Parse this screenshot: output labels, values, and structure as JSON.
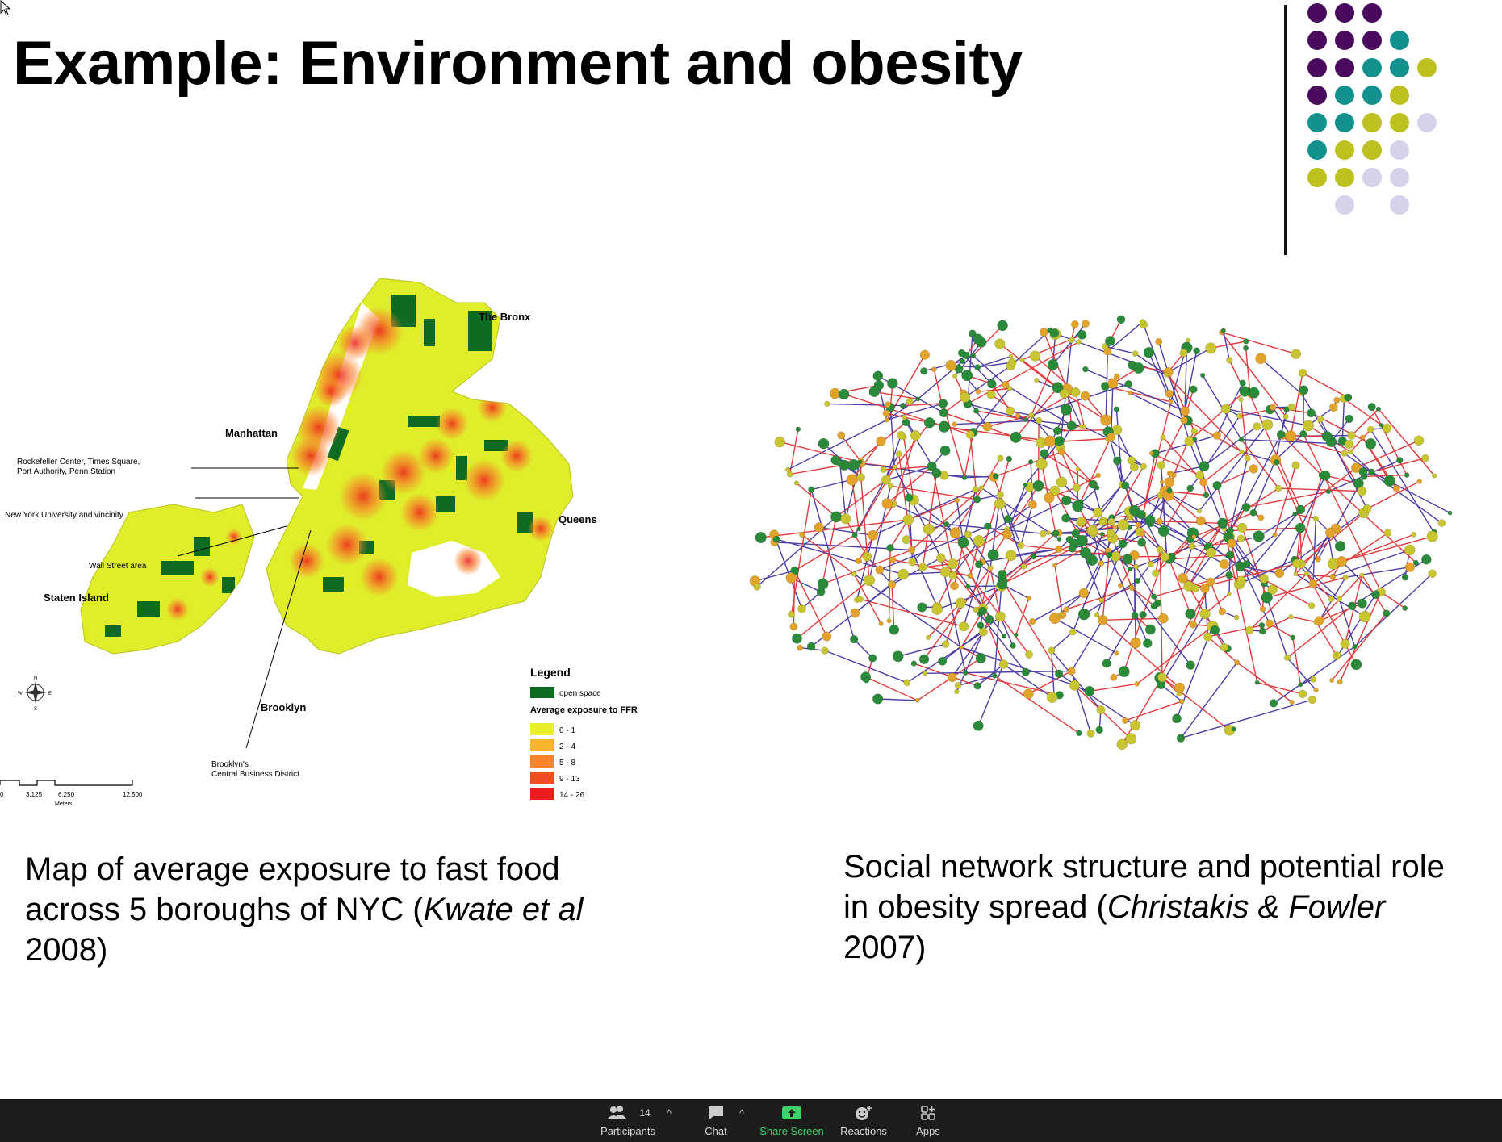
{
  "slide": {
    "title": "Example: Environment and obesity",
    "left_caption": {
      "line1": "Map of average exposure to fast food",
      "line2": "across 5 boroughs of NYC (",
      "line2_italic": "Kwate et al",
      "line3": "2008)"
    },
    "right_caption": {
      "line1": "Social network structure and potential role",
      "line2": "in obesity spread (",
      "line2_italic": "Christakis & Fowler",
      "line3": "2007)"
    }
  },
  "map": {
    "boroughs": {
      "bronx": "The Bronx",
      "manhattan": "Manhattan",
      "queens": "Queens",
      "staten_island": "Staten Island",
      "brooklyn": "Brooklyn"
    },
    "annotations": {
      "rockefeller_1": "Rockefeller Center, Times Square,",
      "rockefeller_2": "Port Authority, Penn Station",
      "nyu": "New York University and vincinity",
      "wall_street": "Wall Street area",
      "brooklyn_cbd_1": "Brooklyn's",
      "brooklyn_cbd_2": "Central Business District"
    },
    "legend": {
      "title": "Legend",
      "open_space": "open space",
      "exposure_title": "Average exposure to FFR",
      "bins": [
        "0 - 1",
        "2 - 4",
        "5 - 8",
        "9 - 13",
        "14 - 26"
      ],
      "bin_colors": [
        "#e8ef2a",
        "#f6b52d",
        "#f7832a",
        "#f04d22",
        "#ee1c1c"
      ],
      "open_space_color": "#0d6b22"
    },
    "scale": {
      "ticks": [
        "0",
        "3,125",
        "6,250",
        "12,500"
      ],
      "unit": "Meters"
    },
    "compass": {
      "n": "N",
      "s": "S",
      "e": "E",
      "w": "W"
    }
  },
  "dot_colors": {
    "purple": "#4a0a5e",
    "teal": "#12918e",
    "olive": "#bcc11f",
    "lavender": "#d5d2ea"
  },
  "taskbar": {
    "participants_label": "Participants",
    "participants_count": "14",
    "chat_label": "Chat",
    "share_label": "Share Screen",
    "reactions_label": "Reactions",
    "apps_label": "Apps",
    "share_color": "#3ed36a"
  }
}
